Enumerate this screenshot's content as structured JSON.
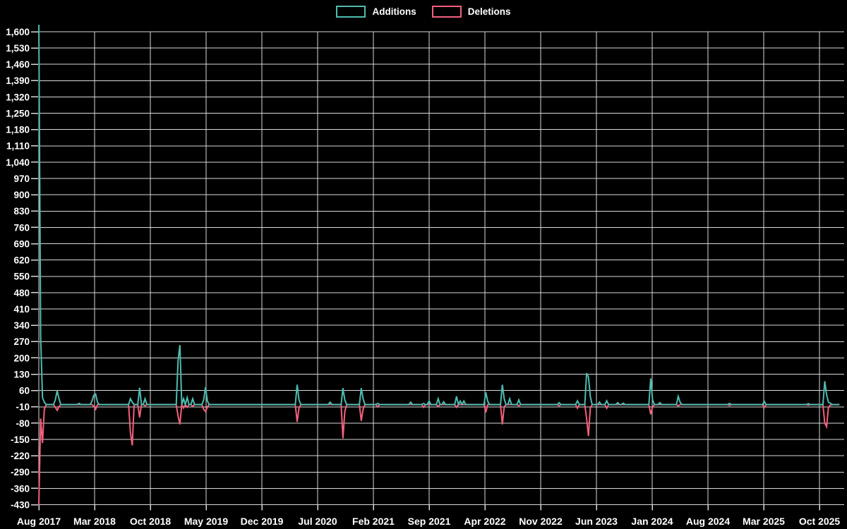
{
  "legend": {
    "position": "top-center",
    "items": [
      {
        "label": "Additions",
        "color": "#4dbcb0"
      },
      {
        "label": "Deletions",
        "color": "#f3607d"
      }
    ]
  },
  "chart_data": {
    "type": "line",
    "title": "",
    "background_color": "#000000",
    "gridline_color": "#d9d9d9",
    "text_color": "#ffffff",
    "grid": true,
    "legend_position": "top-center",
    "x_axis": {
      "unit": "week",
      "tick_labels": [
        "Aug 2017",
        "Mar 2018",
        "Oct 2018",
        "May 2019",
        "Dec 2019",
        "Jul 2020",
        "Feb 2021",
        "Sep 2021",
        "Apr 2022",
        "Nov 2022",
        "Jun 2023",
        "Jan 2024",
        "Aug 2024",
        "Mar 2025",
        "Oct 2025"
      ],
      "months_per_tick": 7
    },
    "y_axis": {
      "tick_step": 70,
      "ticks": [
        1600,
        1530,
        1460,
        1390,
        1320,
        1250,
        1180,
        1110,
        1040,
        970,
        900,
        830,
        760,
        690,
        620,
        550,
        480,
        410,
        340,
        270,
        200,
        130,
        60,
        -10,
        -80,
        -150,
        -220,
        -290,
        -360,
        -430
      ]
    },
    "ylim": [
      -430,
      1632
    ],
    "weeks_total": 438,
    "baseline_value": 0,
    "series": [
      {
        "name": "Additions",
        "color": "#4dbcb0",
        "spikes": {
          "0": 1630,
          "1": 290,
          "2": 30,
          "3": 10,
          "9": 20,
          "10": 60,
          "11": 25,
          "22": 5,
          "29": 15,
          "30": 40,
          "31": 45,
          "32": 10,
          "50": 25,
          "51": 10,
          "55": 72,
          "58": 25,
          "76": 190,
          "77": 255,
          "79": 25,
          "81": 30,
          "84": 25,
          "90": 20,
          "91": 75,
          "92": 15,
          "141": 85,
          "142": 20,
          "159": 10,
          "166": 70,
          "167": 20,
          "176": 70,
          "177": 25,
          "185": 5,
          "203": 10,
          "210": 5,
          "213": 15,
          "218": 25,
          "221": 12,
          "228": 35,
          "230": 15,
          "232": 15,
          "244": 52,
          "245": 15,
          "253": 85,
          "254": 25,
          "257": 25,
          "262": 20,
          "284": 8,
          "294": 16,
          "299": 135,
          "300": 118,
          "301": 35,
          "306": 10,
          "310": 16,
          "316": 8,
          "319": 6,
          "334": 112,
          "335": 20,
          "339": 8,
          "349": 35,
          "350": 10,
          "377": 5,
          "396": 13,
          "420": 4,
          "429": 100,
          "430": 42,
          "431": 10,
          "432": 6
        }
      },
      {
        "name": "Deletions",
        "color": "#f3607d",
        "spikes": {
          "0": -430,
          "1": -60,
          "2": -165,
          "3": -20,
          "9": -12,
          "10": -25,
          "11": -8,
          "30": -8,
          "31": -20,
          "50": -120,
          "51": -175,
          "55": -55,
          "58": -5,
          "76": -50,
          "77": -85,
          "79": -15,
          "81": -12,
          "84": -8,
          "90": -20,
          "91": -30,
          "92": -10,
          "141": -75,
          "142": -15,
          "166": -145,
          "167": -30,
          "176": -70,
          "177": -20,
          "185": -10,
          "210": -12,
          "218": -8,
          "228": -12,
          "244": -33,
          "253": -85,
          "254": -10,
          "262": -5,
          "284": -5,
          "294": -16,
          "299": -60,
          "300": -135,
          "301": -15,
          "310": -16,
          "334": -42,
          "335": -10,
          "349": -6,
          "377": -4,
          "396": -13,
          "420": -3,
          "429": -80,
          "430": -95,
          "431": -12,
          "432": -3
        }
      }
    ]
  }
}
